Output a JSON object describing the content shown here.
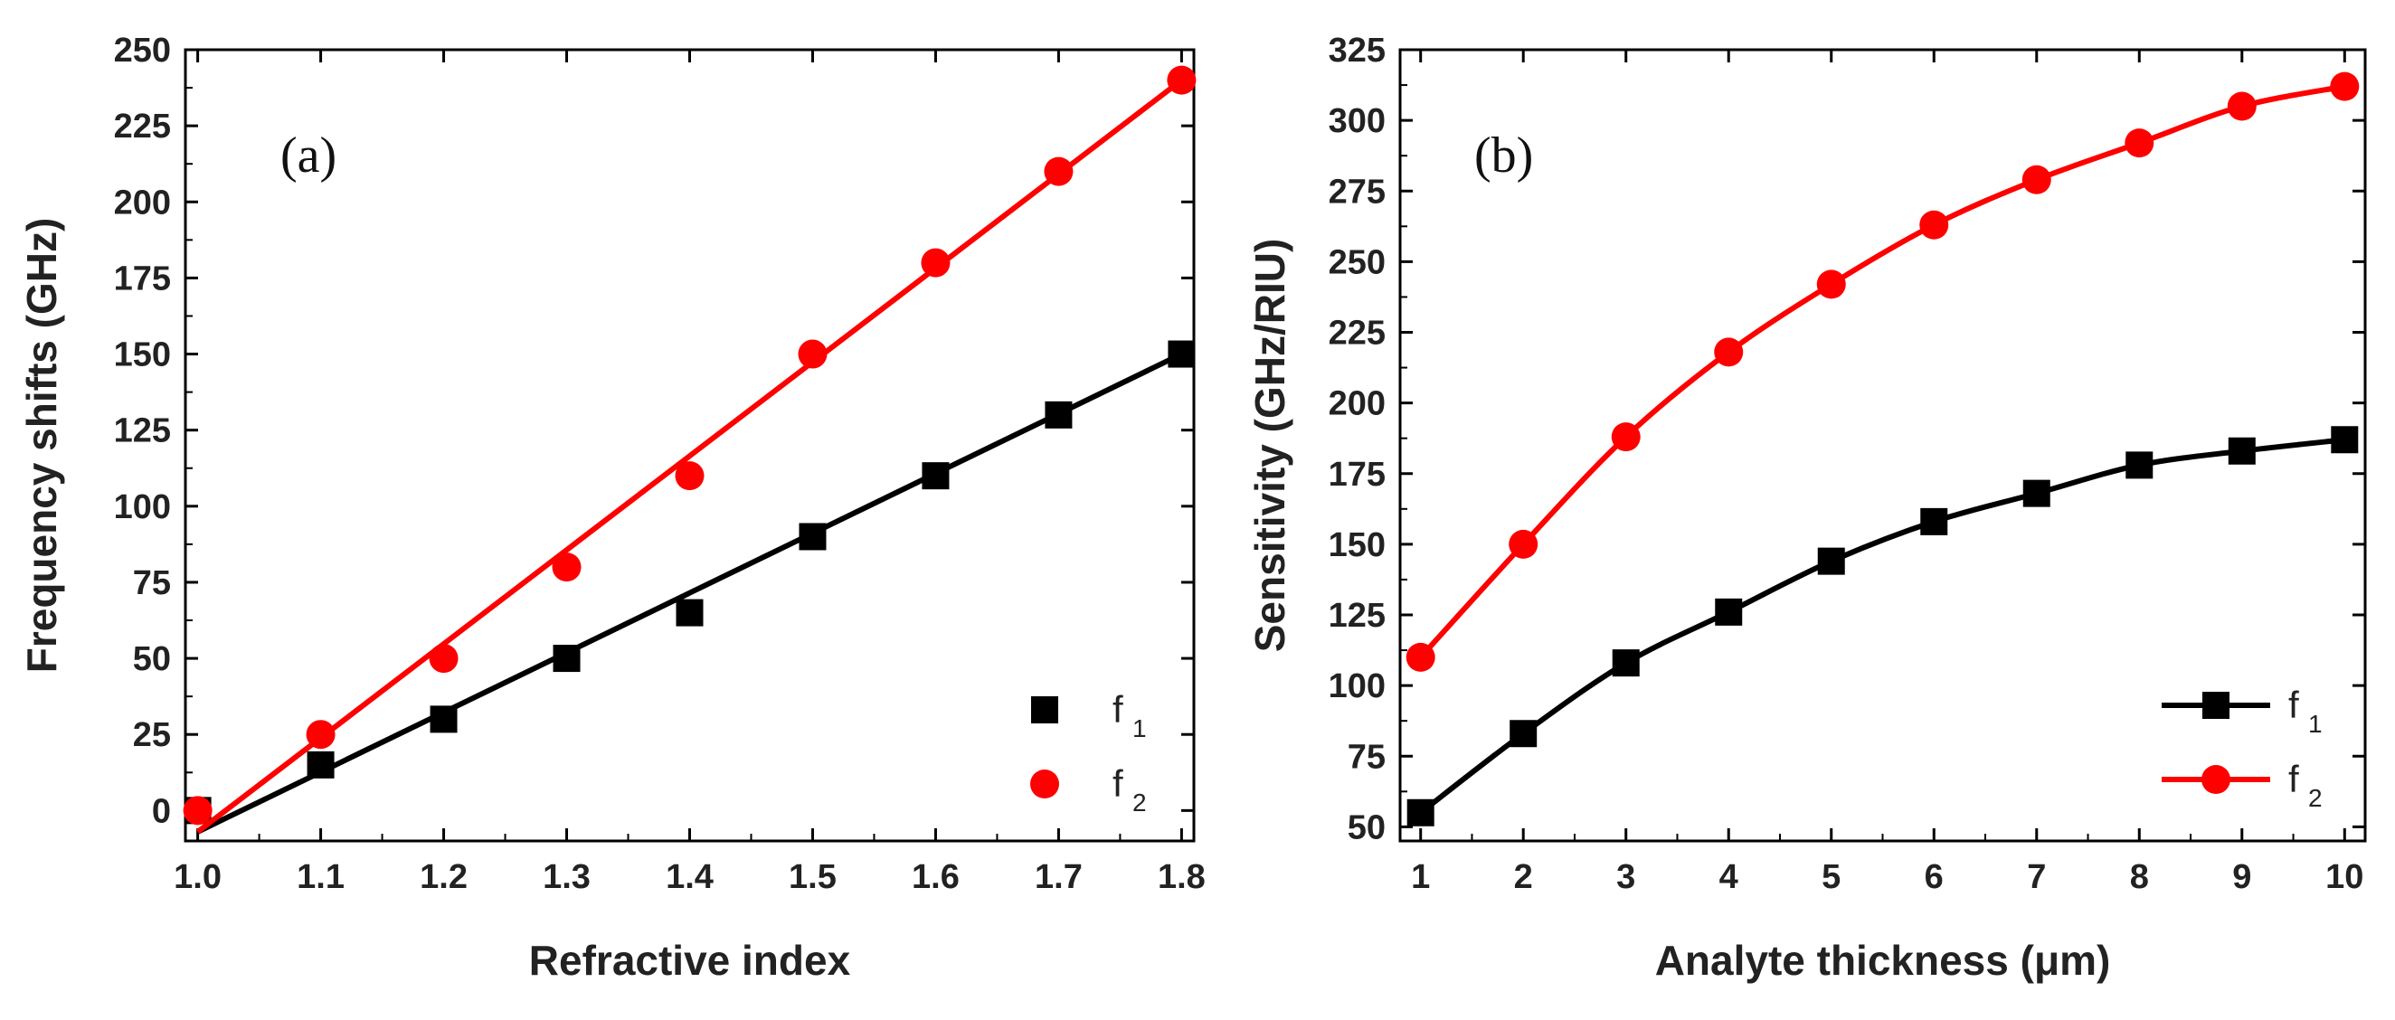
{
  "chart_data": [
    {
      "type": "scatter",
      "panel_label": "(a)",
      "title": "",
      "xlabel": "Refractive index",
      "ylabel": "Frequency shifts (GHz)",
      "xlim": [
        0.99,
        1.81
      ],
      "ylim": [
        -10,
        250
      ],
      "xticks": [
        1.0,
        1.1,
        1.2,
        1.3,
        1.4,
        1.5,
        1.6,
        1.7,
        1.8
      ],
      "xtick_labels": [
        "1.0",
        "1.1",
        "1.2",
        "1.3",
        "1.4",
        "1.5",
        "1.6",
        "1.7",
        "1.8"
      ],
      "yticks": [
        0,
        25,
        50,
        75,
        100,
        125,
        150,
        175,
        200,
        225,
        250
      ],
      "ytick_labels": [
        "0",
        "25",
        "50",
        "75",
        "100",
        "125",
        "150",
        "175",
        "200",
        "225",
        "250"
      ],
      "legend_position": "bottom-right",
      "series": [
        {
          "name": "f1",
          "legend_main": "f",
          "legend_sub": "1",
          "color": "#000000",
          "marker": "square",
          "x": [
            1.0,
            1.1,
            1.2,
            1.3,
            1.4,
            1.5,
            1.6,
            1.7,
            1.8
          ],
          "y": [
            0,
            15,
            30,
            50,
            65,
            90,
            110,
            130,
            150
          ],
          "fit": {
            "x": [
              1.0,
              1.8
            ],
            "y": [
              -7,
              150
            ]
          }
        },
        {
          "name": "f2",
          "legend_main": "f",
          "legend_sub": "2",
          "color": "#ff0000",
          "marker": "circle",
          "x": [
            1.0,
            1.1,
            1.2,
            1.3,
            1.4,
            1.5,
            1.6,
            1.7,
            1.8
          ],
          "y": [
            0,
            25,
            50,
            80,
            110,
            150,
            180,
            210,
            240
          ],
          "fit": {
            "x": [
              1.0,
              1.8
            ],
            "y": [
              -7,
              240
            ]
          }
        }
      ]
    },
    {
      "type": "line",
      "panel_label": "(b)",
      "title": "",
      "xlabel": "Analyte thickness (μm)",
      "ylabel": "Sensitivity (GHz/RIU)",
      "xlim": [
        0.8,
        10.2
      ],
      "ylim": [
        45,
        325
      ],
      "xticks": [
        1,
        2,
        3,
        4,
        5,
        6,
        7,
        8,
        9,
        10
      ],
      "xtick_labels": [
        "1",
        "2",
        "3",
        "4",
        "5",
        "6",
        "7",
        "8",
        "9",
        "10"
      ],
      "yticks": [
        50,
        75,
        100,
        125,
        150,
        175,
        200,
        225,
        250,
        275,
        300,
        325
      ],
      "ytick_labels": [
        "50",
        "75",
        "100",
        "125",
        "150",
        "175",
        "200",
        "225",
        "250",
        "275",
        "300",
        "325"
      ],
      "legend_position": "bottom-right",
      "series": [
        {
          "name": "f1",
          "legend_main": "f",
          "legend_sub": "1",
          "color": "#000000",
          "marker": "square",
          "x": [
            1,
            2,
            3,
            4,
            5,
            6,
            7,
            8,
            9,
            10
          ],
          "y": [
            55,
            83,
            108,
            126,
            144,
            158,
            168,
            178,
            183,
            187
          ]
        },
        {
          "name": "f2",
          "legend_main": "f",
          "legend_sub": "2",
          "color": "#ff0000",
          "marker": "circle",
          "x": [
            1,
            2,
            3,
            4,
            5,
            6,
            7,
            8,
            9,
            10
          ],
          "y": [
            110,
            150,
            188,
            218,
            242,
            263,
            279,
            292,
            305,
            312
          ]
        }
      ]
    }
  ]
}
